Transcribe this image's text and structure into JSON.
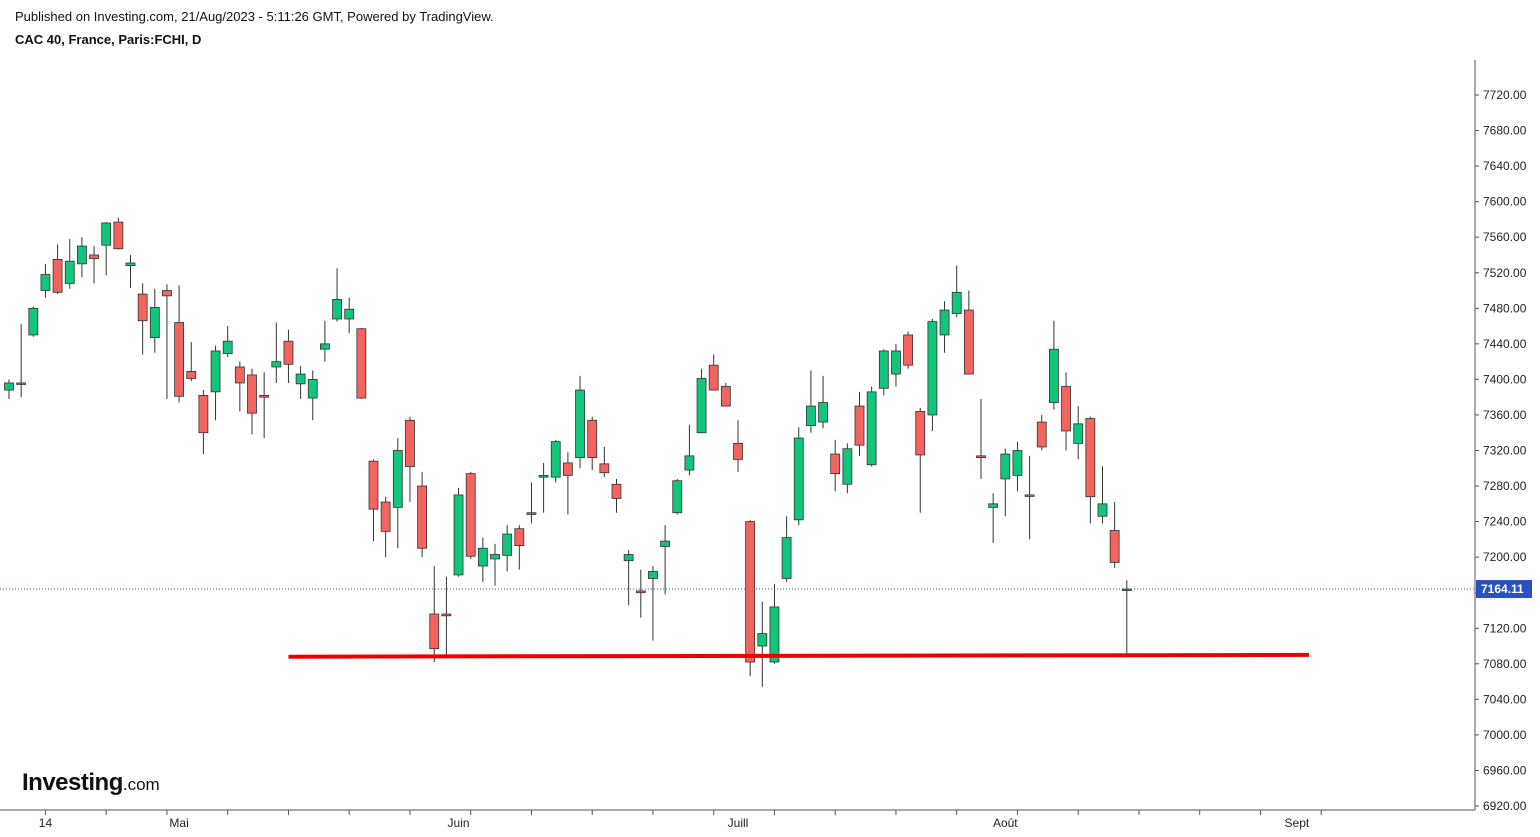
{
  "header": {
    "published": "Published on Investing.com, 21/Aug/2023 - 5:11:26 GMT, Powered by TradingView.",
    "symbol": "CAC 40, France, Paris:FCHI, D"
  },
  "logo": {
    "main": "Investing",
    "suffix": ".com"
  },
  "colors": {
    "up": "#11c57b",
    "down": "#f4645f",
    "wick": "#333333",
    "support": "#ee0000",
    "price_line": "#2a52be",
    "price_tag": "#2a52be"
  },
  "chart_data": {
    "type": "candlestick",
    "title": "CAC 40, France, Paris:FCHI, D",
    "ylim": [
      6920,
      7760
    ],
    "y_ticks": [
      6920,
      6960,
      7000,
      7040,
      7080,
      7120,
      7160,
      7200,
      7240,
      7280,
      7320,
      7360,
      7400,
      7440,
      7480,
      7520,
      7560,
      7600,
      7640,
      7680,
      7720
    ],
    "y_tick_labels": [
      "6920.00",
      "6960.00",
      "7000.00",
      "7040.00",
      "7080.00",
      "7120.00",
      "7160.00",
      "7200.00",
      "7240.00",
      "7280.00",
      "7320.00",
      "7360.00",
      "7400.00",
      "7440.00",
      "7480.00",
      "7520.00",
      "7560.00",
      "7600.00",
      "7640.00",
      "7680.00",
      "7720.00"
    ],
    "x_labels": [
      {
        "label": "14",
        "idx": 3
      },
      {
        "label": "Mai",
        "idx": 14
      },
      {
        "label": "Juin",
        "idx": 37
      },
      {
        "label": "Juill",
        "idx": 60
      },
      {
        "label": "Août",
        "idx": 82
      },
      {
        "label": "Sept",
        "idx": 106
      }
    ],
    "last_price": 7164.11,
    "last_price_label": "7164.11",
    "support_level": {
      "from_idx": 23,
      "to_idx": 107,
      "start": 7088,
      "end": 7090
    },
    "grid": false,
    "candles": [
      {
        "date": "2023-04-11",
        "o": 7388,
        "h": 7400,
        "l": 7378,
        "c": 7396
      },
      {
        "date": "2023-04-12",
        "o": 7396,
        "h": 7462,
        "l": 7380,
        "c": 7396
      },
      {
        "date": "2023-04-13",
        "o": 7450,
        "h": 7482,
        "l": 7448,
        "c": 7480
      },
      {
        "date": "2023-04-14",
        "o": 7500,
        "h": 7530,
        "l": 7492,
        "c": 7518
      },
      {
        "date": "2023-04-17",
        "o": 7535,
        "h": 7552,
        "l": 7496,
        "c": 7498
      },
      {
        "date": "2023-04-18",
        "o": 7508,
        "h": 7558,
        "l": 7502,
        "c": 7533
      },
      {
        "date": "2023-04-19",
        "o": 7530,
        "h": 7560,
        "l": 7515,
        "c": 7550
      },
      {
        "date": "2023-04-20",
        "o": 7540,
        "h": 7550,
        "l": 7508,
        "c": 7536
      },
      {
        "date": "2023-04-21",
        "o": 7551,
        "h": 7577,
        "l": 7517,
        "c": 7576
      },
      {
        "date": "2023-04-24",
        "o": 7577,
        "h": 7582,
        "l": 7546,
        "c": 7547
      },
      {
        "date": "2023-04-25",
        "o": 7528,
        "h": 7540,
        "l": 7503,
        "c": 7531
      },
      {
        "date": "2023-04-26",
        "o": 7496,
        "h": 7508,
        "l": 7428,
        "c": 7466
      },
      {
        "date": "2023-04-27",
        "o": 7447,
        "h": 7502,
        "l": 7430,
        "c": 7481
      },
      {
        "date": "2023-04-28",
        "o": 7500,
        "h": 7507,
        "l": 7378,
        "c": 7494
      },
      {
        "date": "2023-05-02",
        "o": 7464,
        "h": 7506,
        "l": 7374,
        "c": 7381
      },
      {
        "date": "2023-05-03",
        "o": 7409,
        "h": 7442,
        "l": 7398,
        "c": 7401
      },
      {
        "date": "2023-05-04",
        "o": 7382,
        "h": 7388,
        "l": 7316,
        "c": 7340
      },
      {
        "date": "2023-05-05",
        "o": 7386,
        "h": 7438,
        "l": 7354,
        "c": 7432
      },
      {
        "date": "2023-05-08",
        "o": 7429,
        "h": 7460,
        "l": 7425,
        "c": 7443
      },
      {
        "date": "2023-05-09",
        "o": 7414,
        "h": 7420,
        "l": 7364,
        "c": 7396
      },
      {
        "date": "2023-05-10",
        "o": 7405,
        "h": 7412,
        "l": 7338,
        "c": 7362
      },
      {
        "date": "2023-05-11",
        "o": 7382,
        "h": 7408,
        "l": 7334,
        "c": 7380
      },
      {
        "date": "2023-05-12",
        "o": 7414,
        "h": 7464,
        "l": 7396,
        "c": 7420
      },
      {
        "date": "2023-05-15",
        "o": 7443,
        "h": 7456,
        "l": 7396,
        "c": 7417
      },
      {
        "date": "2023-05-16",
        "o": 7395,
        "h": 7415,
        "l": 7378,
        "c": 7406
      },
      {
        "date": "2023-05-17",
        "o": 7379,
        "h": 7410,
        "l": 7354,
        "c": 7400
      },
      {
        "date": "2023-05-18",
        "o": 7434,
        "h": 7466,
        "l": 7420,
        "c": 7440
      },
      {
        "date": "2023-05-19",
        "o": 7468,
        "h": 7525,
        "l": 7465,
        "c": 7490
      },
      {
        "date": "2023-05-22",
        "o": 7468,
        "h": 7492,
        "l": 7452,
        "c": 7479
      },
      {
        "date": "2023-05-23",
        "o": 7457,
        "h": 7458,
        "l": 7378,
        "c": 7379
      },
      {
        "date": "2023-05-24",
        "o": 7308,
        "h": 7310,
        "l": 7218,
        "c": 7254
      },
      {
        "date": "2023-05-25",
        "o": 7262,
        "h": 7268,
        "l": 7200,
        "c": 7229
      },
      {
        "date": "2023-05-26",
        "o": 7256,
        "h": 7334,
        "l": 7210,
        "c": 7320
      },
      {
        "date": "2023-05-29",
        "o": 7354,
        "h": 7358,
        "l": 7262,
        "c": 7302
      },
      {
        "date": "2023-05-30",
        "o": 7280,
        "h": 7296,
        "l": 7200,
        "c": 7210
      },
      {
        "date": "2023-05-31",
        "o": 7136,
        "h": 7190,
        "l": 7082,
        "c": 7097
      },
      {
        "date": "2023-06-01",
        "o": 7136,
        "h": 7178,
        "l": 7090,
        "c": 7134
      },
      {
        "date": "2023-06-02",
        "o": 7180,
        "h": 7278,
        "l": 7178,
        "c": 7270
      },
      {
        "date": "2023-06-05",
        "o": 7294,
        "h": 7296,
        "l": 7198,
        "c": 7201
      },
      {
        "date": "2023-06-06",
        "o": 7190,
        "h": 7222,
        "l": 7172,
        "c": 7210
      },
      {
        "date": "2023-06-07",
        "o": 7198,
        "h": 7215,
        "l": 7168,
        "c": 7203
      },
      {
        "date": "2023-06-08",
        "o": 7202,
        "h": 7236,
        "l": 7184,
        "c": 7226
      },
      {
        "date": "2023-06-09",
        "o": 7232,
        "h": 7236,
        "l": 7186,
        "c": 7213
      },
      {
        "date": "2023-06-12",
        "o": 7248,
        "h": 7284,
        "l": 7238,
        "c": 7250
      },
      {
        "date": "2023-06-13",
        "o": 7290,
        "h": 7306,
        "l": 7250,
        "c": 7292
      },
      {
        "date": "2023-06-14",
        "o": 7290,
        "h": 7332,
        "l": 7284,
        "c": 7330
      },
      {
        "date": "2023-06-15",
        "o": 7306,
        "h": 7318,
        "l": 7248,
        "c": 7292
      },
      {
        "date": "2023-06-16",
        "o": 7312,
        "h": 7404,
        "l": 7300,
        "c": 7388
      },
      {
        "date": "2023-06-19",
        "o": 7354,
        "h": 7358,
        "l": 7298,
        "c": 7312
      },
      {
        "date": "2023-06-20",
        "o": 7305,
        "h": 7324,
        "l": 7290,
        "c": 7295
      },
      {
        "date": "2023-06-21",
        "o": 7282,
        "h": 7288,
        "l": 7250,
        "c": 7266
      },
      {
        "date": "2023-06-22",
        "o": 7196,
        "h": 7208,
        "l": 7146,
        "c": 7203
      },
      {
        "date": "2023-06-23",
        "o": 7162,
        "h": 7186,
        "l": 7132,
        "c": 7160
      },
      {
        "date": "2023-06-26",
        "o": 7176,
        "h": 7190,
        "l": 7106,
        "c": 7184
      },
      {
        "date": "2023-06-27",
        "o": 7212,
        "h": 7236,
        "l": 7158,
        "c": 7218
      },
      {
        "date": "2023-06-28",
        "o": 7250,
        "h": 7288,
        "l": 7248,
        "c": 7286
      },
      {
        "date": "2023-06-29",
        "o": 7298,
        "h": 7349,
        "l": 7292,
        "c": 7314
      },
      {
        "date": "2023-06-30",
        "o": 7340,
        "h": 7412,
        "l": 7340,
        "c": 7401
      },
      {
        "date": "2023-07-03",
        "o": 7416,
        "h": 7428,
        "l": 7388,
        "c": 7388
      },
      {
        "date": "2023-07-04",
        "o": 7392,
        "h": 7396,
        "l": 7370,
        "c": 7370
      },
      {
        "date": "2023-07-05",
        "o": 7328,
        "h": 7354,
        "l": 7296,
        "c": 7310
      },
      {
        "date": "2023-07-06",
        "o": 7240,
        "h": 7242,
        "l": 7066,
        "c": 7082
      },
      {
        "date": "2023-07-07",
        "o": 7100,
        "h": 7150,
        "l": 7054,
        "c": 7114
      },
      {
        "date": "2023-07-10",
        "o": 7082,
        "h": 7170,
        "l": 7080,
        "c": 7144
      },
      {
        "date": "2023-07-11",
        "o": 7176,
        "h": 7246,
        "l": 7172,
        "c": 7222
      },
      {
        "date": "2023-07-12",
        "o": 7242,
        "h": 7346,
        "l": 7236,
        "c": 7334
      },
      {
        "date": "2023-07-13",
        "o": 7348,
        "h": 7410,
        "l": 7340,
        "c": 7370
      },
      {
        "date": "2023-07-14",
        "o": 7352,
        "h": 7404,
        "l": 7345,
        "c": 7374
      },
      {
        "date": "2023-07-17",
        "o": 7316,
        "h": 7332,
        "l": 7274,
        "c": 7294
      },
      {
        "date": "2023-07-18",
        "o": 7282,
        "h": 7328,
        "l": 7272,
        "c": 7322
      },
      {
        "date": "2023-07-19",
        "o": 7370,
        "h": 7386,
        "l": 7314,
        "c": 7326
      },
      {
        "date": "2023-07-20",
        "o": 7304,
        "h": 7392,
        "l": 7302,
        "c": 7386
      },
      {
        "date": "2023-07-21",
        "o": 7390,
        "h": 7434,
        "l": 7382,
        "c": 7432
      },
      {
        "date": "2023-07-24",
        "o": 7406,
        "h": 7440,
        "l": 7392,
        "c": 7432
      },
      {
        "date": "2023-07-25",
        "o": 7450,
        "h": 7454,
        "l": 7412,
        "c": 7416
      },
      {
        "date": "2023-07-26",
        "o": 7364,
        "h": 7368,
        "l": 7250,
        "c": 7315
      },
      {
        "date": "2023-07-27",
        "o": 7360,
        "h": 7468,
        "l": 7342,
        "c": 7465
      },
      {
        "date": "2023-07-28",
        "o": 7450,
        "h": 7488,
        "l": 7430,
        "c": 7478
      },
      {
        "date": "2023-07-31",
        "o": 7474,
        "h": 7528,
        "l": 7470,
        "c": 7498
      },
      {
        "date": "2023-08-01",
        "o": 7478,
        "h": 7500,
        "l": 7406,
        "c": 7406
      },
      {
        "date": "2023-08-02",
        "o": 7314,
        "h": 7378,
        "l": 7288,
        "c": 7312
      },
      {
        "date": "2023-08-03",
        "o": 7256,
        "h": 7272,
        "l": 7216,
        "c": 7260
      },
      {
        "date": "2023-08-04",
        "o": 7288,
        "h": 7322,
        "l": 7246,
        "c": 7316
      },
      {
        "date": "2023-08-07",
        "o": 7292,
        "h": 7330,
        "l": 7274,
        "c": 7320
      },
      {
        "date": "2023-08-08",
        "o": 7270,
        "h": 7314,
        "l": 7220,
        "c": 7269
      },
      {
        "date": "2023-08-09",
        "o": 7352,
        "h": 7360,
        "l": 7320,
        "c": 7324
      },
      {
        "date": "2023-08-10",
        "o": 7374,
        "h": 7466,
        "l": 7366,
        "c": 7434
      },
      {
        "date": "2023-08-11",
        "o": 7392,
        "h": 7408,
        "l": 7320,
        "c": 7342
      },
      {
        "date": "2023-08-14",
        "o": 7328,
        "h": 7370,
        "l": 7310,
        "c": 7350
      },
      {
        "date": "2023-08-15",
        "o": 7356,
        "h": 7358,
        "l": 7238,
        "c": 7268
      },
      {
        "date": "2023-08-16",
        "o": 7246,
        "h": 7302,
        "l": 7238,
        "c": 7260
      },
      {
        "date": "2023-08-17",
        "o": 7230,
        "h": 7262,
        "l": 7188,
        "c": 7194
      },
      {
        "date": "2023-08-18",
        "o": 7164,
        "h": 7174,
        "l": 7092,
        "c": 7164.11
      }
    ]
  }
}
